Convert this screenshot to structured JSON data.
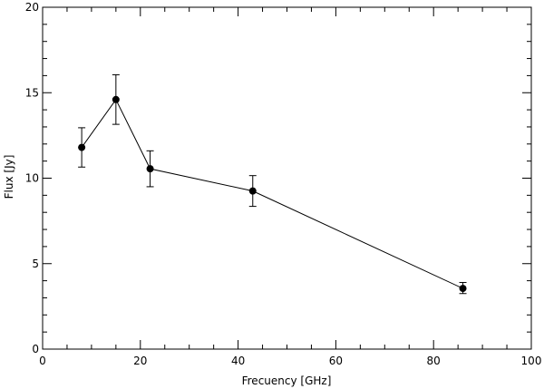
{
  "chart_data": {
    "type": "scatter",
    "xlabel": "Frecuency [GHz]",
    "ylabel": "Flux [Jy]",
    "xlim": [
      0,
      100
    ],
    "ylim": [
      0,
      20
    ],
    "x_ticks": [
      0,
      20,
      40,
      60,
      80,
      100
    ],
    "y_ticks": [
      0,
      5,
      10,
      15,
      20
    ],
    "x_tick_labels": [
      "0",
      "20",
      "40",
      "60",
      "80",
      "100"
    ],
    "y_tick_labels": [
      "0",
      "5",
      "10",
      "15",
      "20"
    ],
    "grid": false,
    "series": [
      {
        "x": [
          8,
          15,
          22,
          43,
          86
        ],
        "y": [
          11.8,
          14.6,
          10.55,
          9.25,
          3.55
        ],
        "yerr_low": [
          10.65,
          13.15,
          9.5,
          8.35,
          3.25
        ],
        "yerr_high": [
          12.95,
          16.05,
          11.6,
          10.15,
          3.9
        ],
        "marker": "circle",
        "line": true,
        "color": "#000000"
      }
    ]
  }
}
